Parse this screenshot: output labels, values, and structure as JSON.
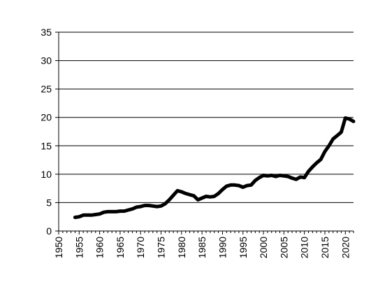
{
  "chart_data": {
    "type": "line",
    "title": "",
    "xlabel": "",
    "ylabel": "",
    "xlim": [
      1950,
      2022
    ],
    "ylim": [
      0,
      35
    ],
    "y_ticks": [
      0,
      5,
      10,
      15,
      20,
      25,
      30,
      35
    ],
    "x_ticks": [
      1950,
      1955,
      1960,
      1965,
      1970,
      1975,
      1980,
      1985,
      1990,
      1995,
      2000,
      2005,
      2010,
      2015,
      2020
    ],
    "grid": "horizontal",
    "legend": "none",
    "colors": {
      "line": "#000000",
      "grid": "#000000"
    },
    "series": [
      {
        "x": [
          1954,
          1955,
          1956,
          1957,
          1958,
          1959,
          1960,
          1961,
          1962,
          1963,
          1964,
          1965,
          1966,
          1967,
          1968,
          1969,
          1970,
          1971,
          1972,
          1973,
          1974,
          1975,
          1976,
          1977,
          1978,
          1979,
          1980,
          1981,
          1982,
          1983,
          1984,
          1985,
          1986,
          1987,
          1988,
          1989,
          1990,
          1991,
          1992,
          1993,
          1994,
          1995,
          1996,
          1997,
          1998,
          1999,
          2000,
          2001,
          2002,
          2003,
          2004,
          2005,
          2006,
          2007,
          2008,
          2009,
          2010,
          2011,
          2012,
          2013,
          2014,
          2015,
          2016,
          2017,
          2018,
          2019,
          2020,
          2021,
          2022
        ],
        "values": [
          2.4,
          2.5,
          2.8,
          2.8,
          2.8,
          2.9,
          3.0,
          3.3,
          3.4,
          3.4,
          3.4,
          3.5,
          3.5,
          3.7,
          3.9,
          4.2,
          4.3,
          4.5,
          4.5,
          4.4,
          4.3,
          4.4,
          4.8,
          5.5,
          6.3,
          7.1,
          6.9,
          6.6,
          6.4,
          6.2,
          5.5,
          5.8,
          6.1,
          6.0,
          6.1,
          6.6,
          7.3,
          7.9,
          8.1,
          8.1,
          8.0,
          7.7,
          8.0,
          8.1,
          8.9,
          9.4,
          9.8,
          9.7,
          9.8,
          9.6,
          9.8,
          9.7,
          9.6,
          9.3,
          9.1,
          9.5,
          9.4,
          10.5,
          11.3,
          12.0,
          12.6,
          14.0,
          15.0,
          16.2,
          16.8,
          17.4,
          19.9,
          19.7,
          19.3
        ]
      }
    ]
  }
}
